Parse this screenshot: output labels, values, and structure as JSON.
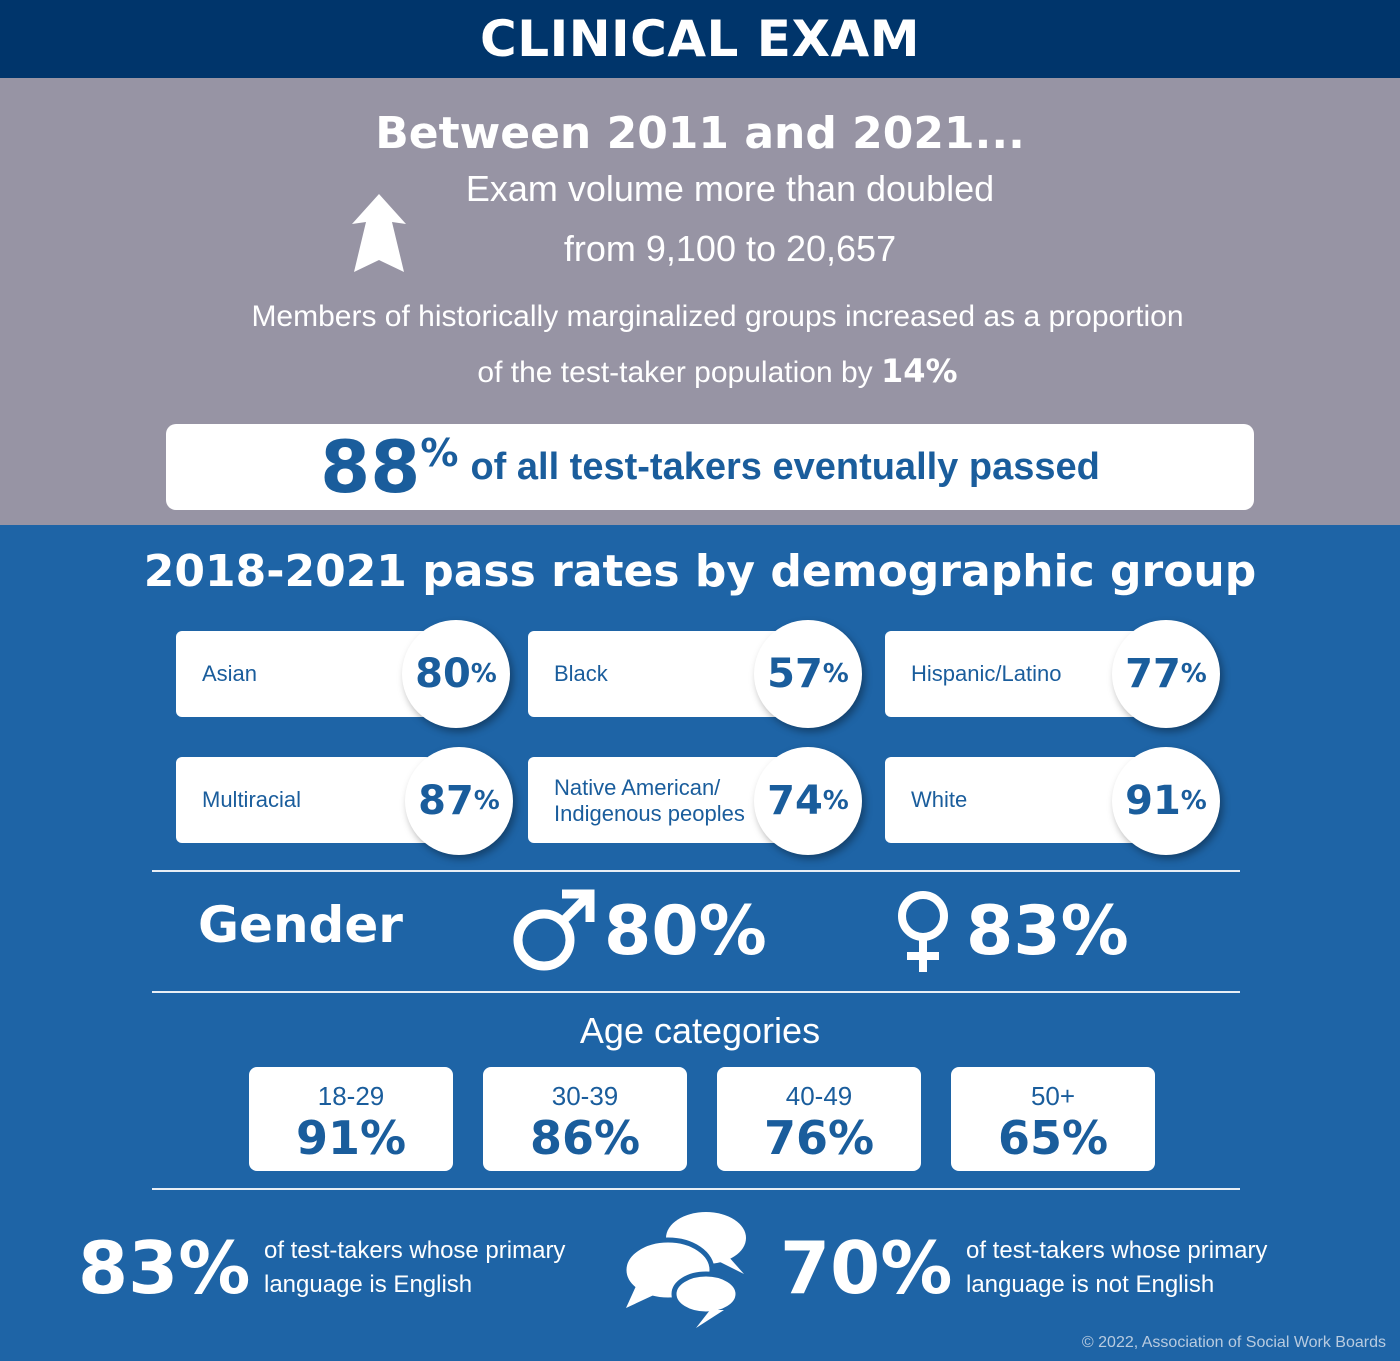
{
  "header": {
    "title": "CLINICAL EXAM"
  },
  "intro": {
    "title": "Between 2011 and 2021...",
    "volume_line1": "Exam volume more than doubled",
    "volume_line2": "from 9,100 to 20,657",
    "marginalized_line1": "Members of historically marginalized groups increased as a proportion",
    "marginalized_line2_text": "of the test-taker population by",
    "marginalized_value": "14%",
    "arrow_icon": "up-arrow-icon"
  },
  "overall_pass": {
    "value": "88",
    "percent_sign": "%",
    "text": "of all test-takers eventually passed"
  },
  "demographics": {
    "title": "2018-2021 pass rates by demographic group",
    "groups": [
      {
        "label": "Asian",
        "value": "80",
        "unit": "%"
      },
      {
        "label": "Black",
        "value": "57",
        "unit": "%"
      },
      {
        "label": "Hispanic/Latino",
        "value": "77",
        "unit": "%"
      },
      {
        "label": "Multiracial",
        "value": "87",
        "unit": "%"
      },
      {
        "label_line1": "Native American/",
        "label_line2": "Indigenous peoples",
        "value": "74",
        "unit": "%"
      },
      {
        "label": "White",
        "value": "91",
        "unit": "%"
      }
    ]
  },
  "gender": {
    "label": "Gender",
    "male": {
      "icon": "male-symbol-icon",
      "value": "80%"
    },
    "female": {
      "icon": "female-symbol-icon",
      "value": "83%"
    }
  },
  "age": {
    "title": "Age categories",
    "categories": [
      {
        "range": "18-29",
        "value": "91%"
      },
      {
        "range": "30-39",
        "value": "86%"
      },
      {
        "range": "40-49",
        "value": "76%"
      },
      {
        "range": "50+",
        "value": "65%"
      }
    ]
  },
  "language": {
    "english": {
      "value": "83%",
      "line1": "of test-takers whose primary",
      "line2": "language is English"
    },
    "not_english": {
      "value": "70%",
      "line1": "of test-takers whose primary",
      "line2": "language is not English"
    },
    "icon": "speech-bubbles-icon"
  },
  "colors": {
    "navy": "#00356b",
    "blue": "#1e64a6",
    "gray": "#9794a4",
    "accent_text": "#1a5d9c"
  },
  "footer": {
    "copyright": "© 2022, Association of Social Work Boards"
  }
}
